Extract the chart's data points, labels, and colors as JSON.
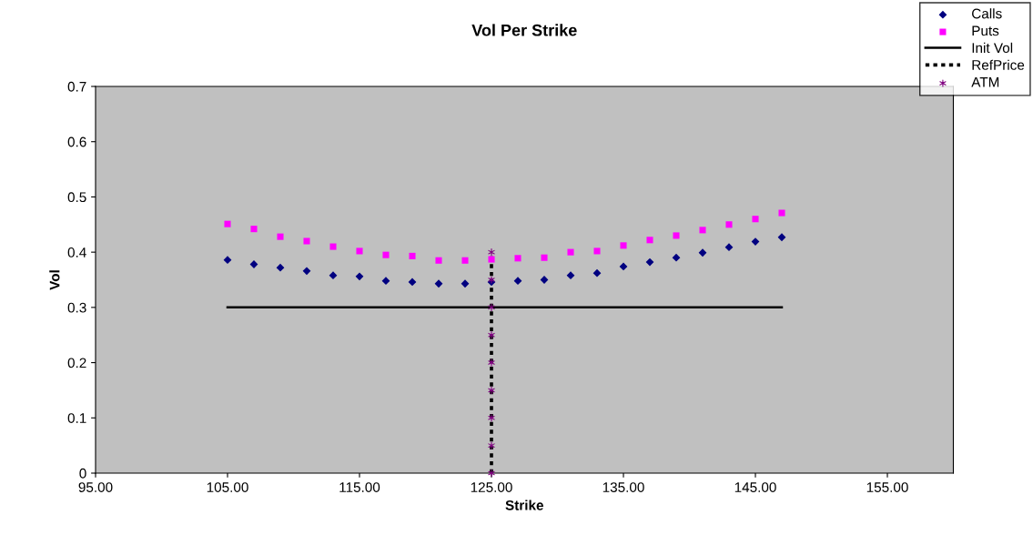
{
  "chart_data": {
    "type": "scatter",
    "title": "Vol Per Strike",
    "xlabel": "Strike",
    "ylabel": "Vol",
    "xlim": [
      95,
      160
    ],
    "xticks": [
      {
        "value": 95,
        "label": "95.00"
      },
      {
        "value": 105,
        "label": "105.00"
      },
      {
        "value": 115,
        "label": "115.00"
      },
      {
        "value": 125,
        "label": "125.00"
      },
      {
        "value": 135,
        "label": "135.00"
      },
      {
        "value": 145,
        "label": "145.00"
      },
      {
        "value": 155,
        "label": "155.00"
      }
    ],
    "ylim": [
      0,
      0.7
    ],
    "yticks": [
      0,
      0.1,
      0.2,
      0.3,
      0.4,
      0.5,
      0.6,
      0.7
    ],
    "grid": false,
    "legend": "top right",
    "series": [
      {
        "name": "Calls",
        "marker": "diamond",
        "color": "#000080",
        "x": [
          105,
          107,
          109,
          111,
          113,
          115,
          117,
          119,
          121,
          123,
          125,
          127,
          129,
          131,
          133,
          135,
          137,
          139,
          141,
          143,
          145,
          147
        ],
        "values": [
          0.386,
          0.378,
          0.372,
          0.366,
          0.358,
          0.356,
          0.348,
          0.346,
          0.343,
          0.343,
          0.346,
          0.348,
          0.35,
          0.358,
          0.362,
          0.374,
          0.382,
          0.39,
          0.399,
          0.409,
          0.419,
          0.427
        ]
      },
      {
        "name": "Puts",
        "marker": "square",
        "color": "#ff00ff",
        "x": [
          105,
          107,
          109,
          111,
          113,
          115,
          117,
          119,
          121,
          123,
          125,
          127,
          129,
          131,
          133,
          135,
          137,
          139,
          141,
          143,
          145,
          147
        ],
        "values": [
          0.451,
          0.442,
          0.428,
          0.42,
          0.41,
          0.402,
          0.395,
          0.393,
          0.385,
          0.385,
          0.387,
          0.389,
          0.39,
          0.4,
          0.402,
          0.412,
          0.422,
          0.43,
          0.44,
          0.45,
          0.46,
          0.471
        ]
      },
      {
        "name": "Init Vol",
        "type": "line",
        "line_style": "solid",
        "color": "#000000",
        "x": [
          105,
          147
        ],
        "values": [
          0.3,
          0.3
        ]
      },
      {
        "name": "RefPrice",
        "type": "line",
        "line_style": "dotted",
        "color": "#000000",
        "x": [
          125,
          125
        ],
        "values": [
          0,
          0.4
        ]
      },
      {
        "name": "ATM",
        "marker": "cross",
        "color": "#800080",
        "x": [
          125,
          125,
          125,
          125,
          125,
          125,
          125,
          125,
          125
        ],
        "values": [
          0,
          0.05,
          0.1,
          0.15,
          0.2,
          0.25,
          0.3,
          0.35,
          0.4
        ]
      }
    ]
  }
}
